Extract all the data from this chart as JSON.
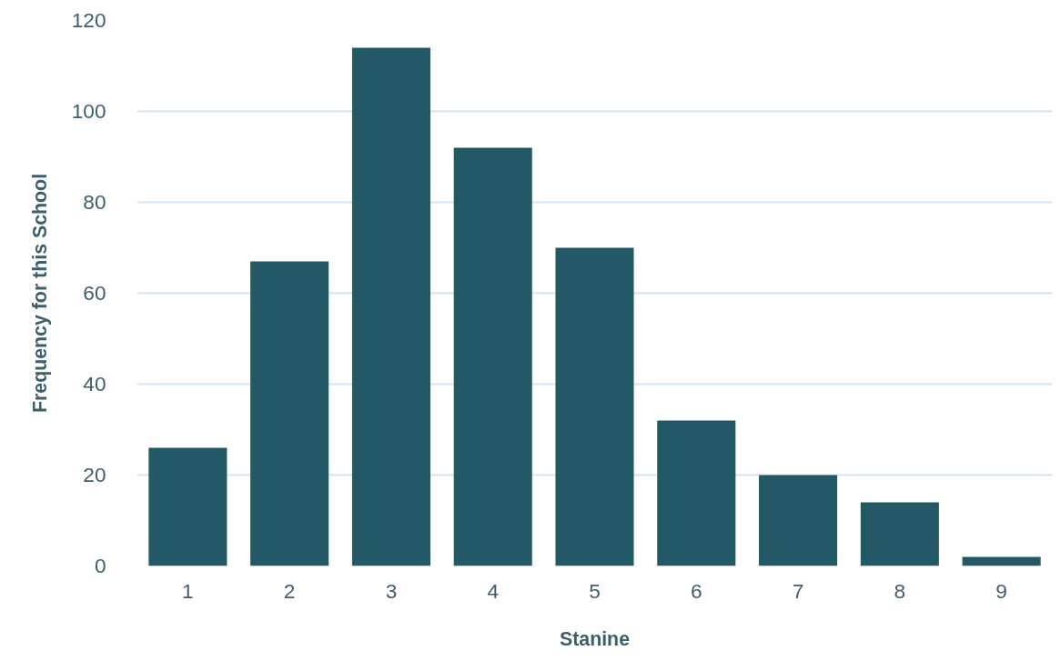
{
  "chart_data": {
    "type": "bar",
    "xlabel": "Stanine",
    "ylabel": "Frequency for this School",
    "categories": [
      "1",
      "2",
      "3",
      "4",
      "5",
      "6",
      "7",
      "8",
      "9"
    ],
    "values": [
      26,
      67,
      114,
      92,
      70,
      32,
      20,
      14,
      2
    ],
    "color": "#235966",
    "ylim": [
      0,
      120
    ],
    "yticks": [
      0,
      20,
      40,
      60,
      80,
      100,
      120
    ],
    "grid": "y"
  }
}
